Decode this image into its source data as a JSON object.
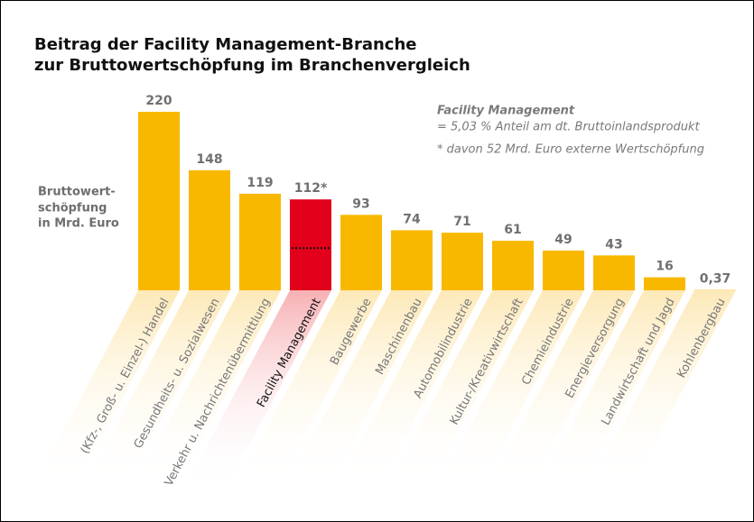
{
  "chart_data": {
    "type": "bar",
    "title": [
      "Beitrag der Facility Management-Branche",
      "zur Bruttowertschöpfung im Branchenvergleich"
    ],
    "ylabel": [
      "Bruttowert-",
      "schöpfung",
      "in Mrd. Euro"
    ],
    "annotations": [
      "Facility Management",
      "= 5,03 % Anteil am dt. Bruttoinlandsprodukt",
      "* davon 52 Mrd. Euro externe Wertschöpfung"
    ],
    "categories": [
      "(Kfz-, Groß- u. Einzel-) Handel",
      "Gesundheits- u. Sozialwesen",
      "Verkehr u. Nachrichtenübermittlung",
      "Facility Management",
      "Baugewerbe",
      "Maschinenbau",
      "Automobilindustrie",
      "Kultur-/Kreativwirtschaft",
      "Chemieindustrie",
      "Energieversorgung",
      "Landwirtschaft und Jagd",
      "Kohlenbergbau"
    ],
    "values": [
      220,
      148,
      119,
      112,
      93,
      74,
      71,
      61,
      49,
      43,
      16,
      0.37
    ],
    "value_labels": [
      "220",
      "148",
      "119",
      "112*",
      "93",
      "74",
      "71",
      "61",
      "49",
      "43",
      "16",
      "0,37"
    ],
    "reference_values": [
      null,
      null,
      null,
      52,
      null,
      null,
      null,
      null,
      null,
      null,
      null,
      null
    ],
    "colors": [
      "#f9b800",
      "#f9b800",
      "#f9b800",
      "#e2001a",
      "#f9b800",
      "#f9b800",
      "#f9b800",
      "#f9b800",
      "#f9b800",
      "#f9b800",
      "#f9b800",
      "#f9b800"
    ],
    "ylim": [
      0,
      220
    ]
  }
}
